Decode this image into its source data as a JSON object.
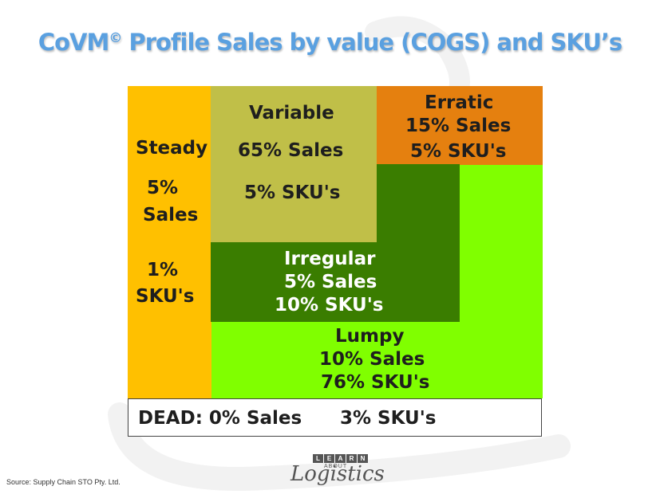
{
  "title": {
    "prefix": "CoVM",
    "symbol": "©",
    "suffix": " Profile Sales by value (COGS) and SKU’s"
  },
  "segments": {
    "steady": {
      "name": "Steady",
      "sales_line1": "5%",
      "sales_line2": "Sales",
      "sku_line1": "1%",
      "sku_line2": "SKU's",
      "color": "#FFC000"
    },
    "variable": {
      "name": "Variable",
      "sales": "65% Sales",
      "sku": "5% SKU's",
      "color": "#C0BF48"
    },
    "erratic": {
      "name": "Erratic",
      "sales": "15% Sales",
      "sku": "5% SKU's",
      "color": "#E5800F"
    },
    "irregular": {
      "name": "Irregular",
      "sales": "5% Sales",
      "sku": "10% SKU's",
      "color": "#3A7D00"
    },
    "lumpy": {
      "name": "Lumpy",
      "sales": "10% Sales",
      "sku": "76% SKU's",
      "color": "#80FF00"
    },
    "dead": {
      "sales": "DEAD: 0% Sales",
      "sku": "3% SKU's"
    }
  },
  "source": "Source: Supply Chain STO Pty. Ltd.",
  "logo": {
    "letters": [
      "L",
      "E",
      "A",
      "R",
      "N"
    ],
    "about": "ABOUT",
    "script": "Logistics"
  }
}
